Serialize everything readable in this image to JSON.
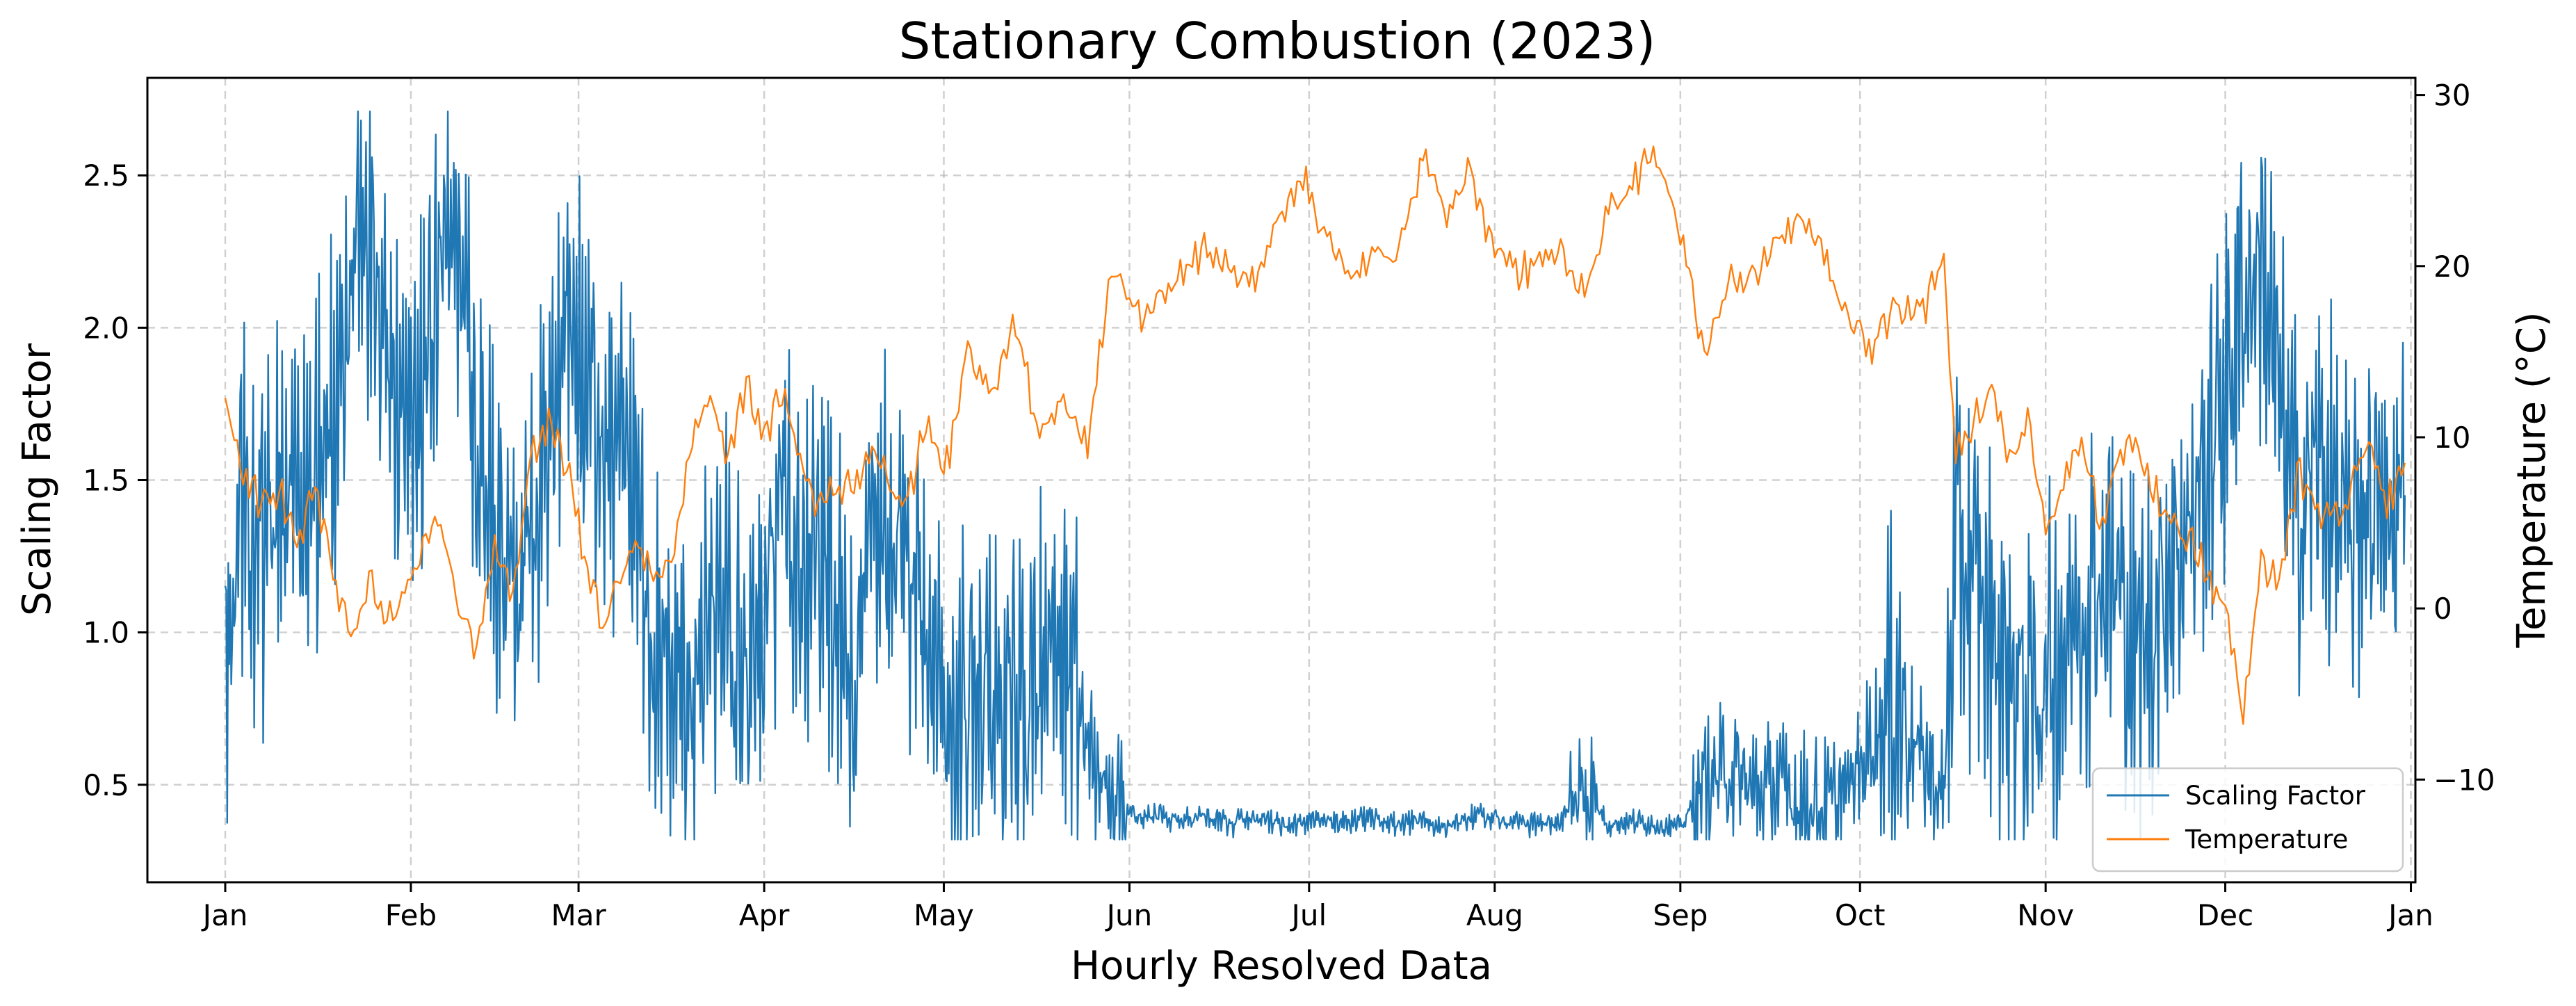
{
  "chart_data": {
    "type": "line",
    "title": "Stationary Combustion (2023)",
    "xlabel": "Hourly Resolved Data",
    "ylabel_left": "Scaling Factor",
    "ylabel_right": "Temperature (°C)",
    "x_tick_labels": [
      "Jan",
      "Feb",
      "Mar",
      "Apr",
      "May",
      "Jun",
      "Jul",
      "Aug",
      "Sep",
      "Oct",
      "Nov",
      "Dec",
      "Jan"
    ],
    "x_tick_dates": [
      "2023-01-01",
      "2023-02-01",
      "2023-03-01",
      "2023-04-01",
      "2023-05-01",
      "2023-06-01",
      "2023-07-01",
      "2023-08-01",
      "2023-09-01",
      "2023-10-01",
      "2023-11-01",
      "2023-12-01",
      "2024-01-01"
    ],
    "xlim": [
      "2022-12-19",
      "2024-01-01T18:00"
    ],
    "y_left_ticks": [
      "0.5",
      "1.0",
      "1.5",
      "2.0",
      "2.5"
    ],
    "y_left_tick_values": [
      0.5,
      1.0,
      1.5,
      2.0,
      2.5
    ],
    "ylim_left": [
      0.18,
      2.82
    ],
    "y_right_ticks": [
      "−10",
      "0",
      "10",
      "20",
      "30"
    ],
    "y_right_tick_values": [
      -10,
      0,
      10,
      20,
      30
    ],
    "ylim_right": [
      -16,
      31
    ],
    "grid": true,
    "legend_position": "lower-right",
    "series": [
      {
        "name": "Scaling Factor",
        "axis": "left",
        "color": "#1f77b4",
        "x": [
          "2023-01-01",
          "2023-01-04",
          "2023-01-07",
          "2023-01-10",
          "2023-01-13",
          "2023-01-16",
          "2023-01-19",
          "2023-01-22",
          "2023-01-25",
          "2023-01-28",
          "2023-01-31",
          "2023-02-03",
          "2023-02-06",
          "2023-02-09",
          "2023-02-12",
          "2023-02-15",
          "2023-02-18",
          "2023-02-21",
          "2023-02-24",
          "2023-02-27",
          "2023-03-02",
          "2023-03-05",
          "2023-03-08",
          "2023-03-11",
          "2023-03-14",
          "2023-03-17",
          "2023-03-20",
          "2023-03-23",
          "2023-03-26",
          "2023-03-29",
          "2023-04-01",
          "2023-04-04",
          "2023-04-07",
          "2023-04-10",
          "2023-04-13",
          "2023-04-16",
          "2023-04-19",
          "2023-04-22",
          "2023-04-25",
          "2023-04-28",
          "2023-05-01",
          "2023-05-05",
          "2023-05-09",
          "2023-05-13",
          "2023-05-17",
          "2023-05-21",
          "2023-05-25",
          "2023-05-29",
          "2023-06-02",
          "2023-06-06",
          "2023-06-10",
          "2023-06-14",
          "2023-06-18",
          "2023-06-22",
          "2023-06-26",
          "2023-06-30",
          "2023-07-04",
          "2023-07-08",
          "2023-07-12",
          "2023-07-16",
          "2023-07-20",
          "2023-07-24",
          "2023-07-28",
          "2023-07-31",
          "2023-08-04",
          "2023-08-08",
          "2023-08-12",
          "2023-08-16",
          "2023-08-20",
          "2023-08-24",
          "2023-08-28",
          "2023-09-01",
          "2023-09-05",
          "2023-09-09",
          "2023-09-13",
          "2023-09-17",
          "2023-09-21",
          "2023-09-25",
          "2023-09-29",
          "2023-10-03",
          "2023-10-07",
          "2023-10-11",
          "2023-10-15",
          "2023-10-17",
          "2023-10-20",
          "2023-10-23",
          "2023-10-26",
          "2023-10-29",
          "2023-11-01",
          "2023-11-04",
          "2023-11-07",
          "2023-11-10",
          "2023-11-13",
          "2023-11-16",
          "2023-11-19",
          "2023-11-22",
          "2023-11-25",
          "2023-11-28",
          "2023-12-01",
          "2023-12-04",
          "2023-12-07",
          "2023-12-10",
          "2023-12-13",
          "2023-12-16",
          "2023-12-19",
          "2023-12-22",
          "2023-12-25",
          "2023-12-28",
          "2023-12-31"
        ],
        "y": [
          0.95,
          1.45,
          1.25,
          1.55,
          1.3,
          1.5,
          1.75,
          2.1,
          2.3,
          1.9,
          1.7,
          1.75,
          2.2,
          2.35,
          1.6,
          1.3,
          1.2,
          1.25,
          1.7,
          1.95,
          1.85,
          1.65,
          1.55,
          1.35,
          0.95,
          0.85,
          0.85,
          1.05,
          1.1,
          0.8,
          1.1,
          1.45,
          1.2,
          1.35,
          1.05,
          0.9,
          1.25,
          1.4,
          1.15,
          1.0,
          0.75,
          0.8,
          0.75,
          0.7,
          0.85,
          0.95,
          0.6,
          0.45,
          0.4,
          0.4,
          0.38,
          0.4,
          0.37,
          0.39,
          0.37,
          0.38,
          0.39,
          0.37,
          0.4,
          0.37,
          0.38,
          0.36,
          0.4,
          0.39,
          0.38,
          0.37,
          0.38,
          0.5,
          0.37,
          0.38,
          0.37,
          0.36,
          0.5,
          0.55,
          0.48,
          0.5,
          0.45,
          0.42,
          0.48,
          0.65,
          0.8,
          0.6,
          0.45,
          1.3,
          1.15,
          1.0,
          0.85,
          0.75,
          0.85,
          0.95,
          1.1,
          1.2,
          1.15,
          0.9,
          1.05,
          1.25,
          1.35,
          1.55,
          1.8,
          2.1,
          2.25,
          1.75,
          1.4,
          1.55,
          1.45,
          1.25,
          1.5,
          1.3,
          1.45
        ]
      },
      {
        "name": "Temperature",
        "axis": "right",
        "color": "#ff7f0e",
        "x": [
          "2023-01-01",
          "2023-01-04",
          "2023-01-07",
          "2023-01-10",
          "2023-01-13",
          "2023-01-16",
          "2023-01-19",
          "2023-01-22",
          "2023-01-25",
          "2023-01-28",
          "2023-01-31",
          "2023-02-03",
          "2023-02-06",
          "2023-02-09",
          "2023-02-12",
          "2023-02-15",
          "2023-02-18",
          "2023-02-21",
          "2023-02-24",
          "2023-02-27",
          "2023-03-02",
          "2023-03-05",
          "2023-03-08",
          "2023-03-11",
          "2023-03-14",
          "2023-03-17",
          "2023-03-20",
          "2023-03-23",
          "2023-03-26",
          "2023-03-29",
          "2023-04-01",
          "2023-04-04",
          "2023-04-07",
          "2023-04-10",
          "2023-04-13",
          "2023-04-16",
          "2023-04-19",
          "2023-04-22",
          "2023-04-25",
          "2023-04-28",
          "2023-05-01",
          "2023-05-05",
          "2023-05-09",
          "2023-05-13",
          "2023-05-17",
          "2023-05-21",
          "2023-05-25",
          "2023-05-29",
          "2023-06-02",
          "2023-06-06",
          "2023-06-10",
          "2023-06-14",
          "2023-06-18",
          "2023-06-22",
          "2023-06-26",
          "2023-06-30",
          "2023-07-04",
          "2023-07-08",
          "2023-07-12",
          "2023-07-16",
          "2023-07-20",
          "2023-07-24",
          "2023-07-28",
          "2023-07-31",
          "2023-08-04",
          "2023-08-08",
          "2023-08-12",
          "2023-08-16",
          "2023-08-20",
          "2023-08-24",
          "2023-08-28",
          "2023-09-01",
          "2023-09-05",
          "2023-09-09",
          "2023-09-13",
          "2023-09-17",
          "2023-09-21",
          "2023-09-25",
          "2023-09-29",
          "2023-10-03",
          "2023-10-07",
          "2023-10-11",
          "2023-10-15",
          "2023-10-17",
          "2023-10-20",
          "2023-10-23",
          "2023-10-26",
          "2023-10-29",
          "2023-11-01",
          "2023-11-04",
          "2023-11-07",
          "2023-11-10",
          "2023-11-13",
          "2023-11-16",
          "2023-11-19",
          "2023-11-22",
          "2023-11-25",
          "2023-11-28",
          "2023-12-01",
          "2023-12-04",
          "2023-12-07",
          "2023-12-10",
          "2023-12-13",
          "2023-12-16",
          "2023-12-19",
          "2023-12-22",
          "2023-12-25",
          "2023-12-28",
          "2023-12-31"
        ],
        "y": [
          12.0,
          8.0,
          6.0,
          7.0,
          4.0,
          7.0,
          2.0,
          -2.0,
          1.5,
          -0.5,
          1.0,
          3.5,
          5.0,
          0.0,
          -2.5,
          3.5,
          0.5,
          9.0,
          11.0,
          8.5,
          3.0,
          -1.0,
          2.0,
          4.0,
          1.5,
          3.0,
          10.0,
          12.0,
          9.0,
          13.0,
          10.0,
          12.5,
          9.0,
          6.0,
          7.0,
          7.5,
          9.5,
          7.0,
          6.0,
          11.0,
          7.5,
          15.0,
          12.5,
          16.5,
          10.0,
          12.0,
          9.5,
          20.0,
          17.0,
          18.0,
          19.5,
          21.0,
          20.0,
          19.0,
          23.0,
          25.0,
          22.0,
          19.5,
          21.0,
          20.5,
          26.0,
          23.0,
          25.5,
          22.0,
          19.5,
          20.0,
          21.0,
          18.0,
          23.0,
          25.0,
          26.5,
          22.0,
          14.5,
          19.0,
          19.5,
          21.5,
          23.0,
          20.5,
          17.0,
          15.0,
          18.0,
          17.0,
          20.0,
          9.0,
          11.0,
          13.0,
          9.0,
          11.0,
          5.0,
          7.0,
          10.0,
          5.0,
          8.5,
          10.0,
          7.0,
          5.0,
          4.0,
          2.0,
          0.0,
          -6.0,
          3.0,
          1.0,
          8.0,
          6.0,
          5.0,
          7.0,
          9.5,
          6.0,
          8.5
        ]
      }
    ]
  }
}
